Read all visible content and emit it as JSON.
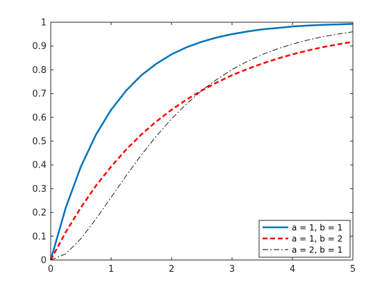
{
  "chart_data": {
    "type": "line",
    "title": "",
    "xlabel": "",
    "ylabel": "",
    "xlim": [
      0,
      5
    ],
    "ylim": [
      0,
      1
    ],
    "xticks": [
      0,
      1,
      2,
      3,
      4,
      5
    ],
    "xtick_labels": [
      "0",
      "1",
      "2",
      "3",
      "4",
      "5"
    ],
    "yticks": [
      0,
      0.1,
      0.2,
      0.3,
      0.4,
      0.5,
      0.6,
      0.7,
      0.8,
      0.9,
      1
    ],
    "ytick_labels": [
      "0",
      "0.1",
      "0.2",
      "0.3",
      "0.4",
      "0.5",
      "0.6",
      "0.7",
      "0.8",
      "0.9",
      "1"
    ],
    "grid": false,
    "legend_position": "bottom-right",
    "x": [
      0,
      0.25,
      0.5,
      0.75,
      1,
      1.25,
      1.5,
      1.75,
      2,
      2.25,
      2.5,
      2.75,
      3,
      3.25,
      3.5,
      3.75,
      4,
      4.25,
      4.5,
      4.75,
      5
    ],
    "series": [
      {
        "name": "a = 1, b = 1",
        "color": "#0072BD",
        "line_style": "solid",
        "values": [
          0,
          0.221,
          0.393,
          0.528,
          0.632,
          0.713,
          0.777,
          0.826,
          0.865,
          0.895,
          0.918,
          0.936,
          0.95,
          0.961,
          0.97,
          0.976,
          0.982,
          0.986,
          0.989,
          0.991,
          0.993
        ]
      },
      {
        "name": "a = 1, b = 2",
        "color": "#FF0000",
        "line_style": "dashed",
        "values": [
          0,
          0.118,
          0.221,
          0.313,
          0.393,
          0.465,
          0.528,
          0.583,
          0.632,
          0.675,
          0.713,
          0.747,
          0.777,
          0.803,
          0.826,
          0.847,
          0.865,
          0.881,
          0.895,
          0.907,
          0.918
        ]
      },
      {
        "name": "a = 2, b = 1",
        "color": "#000000",
        "line_style": "dashdot",
        "values": [
          0,
          0.026,
          0.09,
          0.173,
          0.264,
          0.355,
          0.442,
          0.522,
          0.594,
          0.657,
          0.713,
          0.76,
          0.801,
          0.835,
          0.864,
          0.888,
          0.908,
          0.925,
          0.939,
          0.95,
          0.96
        ]
      }
    ]
  }
}
